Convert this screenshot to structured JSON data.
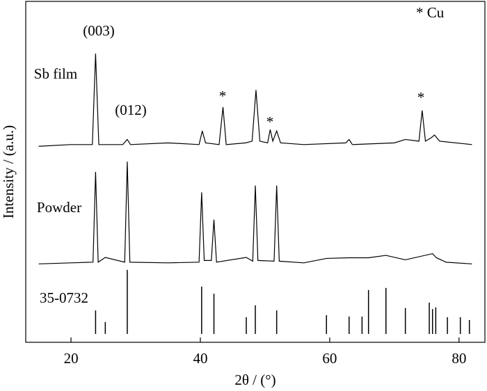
{
  "chart_data": {
    "type": "line",
    "xlabel": "2θ / (°)",
    "ylabel": "Intensity / (a.u.)",
    "xlim": [
      13,
      84
    ],
    "xticks": [
      20,
      40,
      60,
      80
    ],
    "ylim": [
      0,
      100
    ],
    "annotations": [
      "(003)",
      "(012)",
      "*",
      "*",
      "*",
      "* Cu"
    ],
    "series": [
      {
        "name": "Sb film",
        "type": "line",
        "color": "#000000",
        "x": [
          15,
          20,
          23.3,
          23.8,
          24.3,
          28,
          28.7,
          29.2,
          35,
          39.8,
          40.3,
          40.8,
          42.9,
          43.5,
          44,
          47,
          48.0,
          48.6,
          49.2,
          50.4,
          50.8,
          51.2,
          51.8,
          52.4,
          56,
          62.5,
          63,
          63.5,
          70,
          71.7,
          73.8,
          74.3,
          74.8,
          75.7,
          76.2,
          77,
          82
        ],
        "values": [
          57.5,
          58,
          58,
          84.7,
          58,
          58,
          59.5,
          58,
          58.5,
          58,
          62,
          58.5,
          58,
          69,
          58,
          58.5,
          59,
          74,
          59,
          58.5,
          62.4,
          59,
          62,
          58.5,
          58,
          58.5,
          59.5,
          58,
          58.5,
          59.5,
          59,
          68,
          59,
          60,
          60.8,
          59,
          58
        ]
      },
      {
        "name": "Powder",
        "type": "line",
        "color": "#000000",
        "x": [
          15,
          20,
          23.4,
          23.8,
          24.2,
          25.3,
          28.3,
          28.7,
          29.1,
          35,
          39.8,
          40.2,
          40.6,
          41.7,
          42.1,
          42.5,
          47.1,
          48.1,
          48.5,
          48.9,
          51.4,
          51.8,
          52.2,
          56,
          59.5,
          63,
          66,
          68.7,
          71.7,
          75.9,
          76.5,
          78,
          82
        ],
        "values": [
          23,
          23.3,
          23.5,
          50,
          23.5,
          24.9,
          23.5,
          53,
          23.5,
          23.3,
          23.5,
          44,
          24,
          24,
          36,
          23.5,
          24.9,
          23.8,
          46,
          24,
          23.8,
          46,
          23.8,
          23.3,
          24.6,
          24.8,
          24.8,
          25.5,
          24.2,
          26,
          24.8,
          23.5,
          23
        ]
      },
      {
        "name": "35-0732",
        "type": "stem",
        "color": "#000000",
        "x": [
          23.8,
          25.3,
          28.7,
          40.2,
          42.1,
          47.1,
          48.5,
          51.8,
          59.5,
          63,
          65,
          66,
          68.7,
          71.7,
          75.4,
          75.9,
          76.4,
          78.2,
          80.2,
          81.6
        ],
        "values": [
          6.9,
          3.5,
          18.8,
          13.9,
          11.8,
          4.9,
          8.4,
          6.9,
          5.5,
          5.1,
          5.1,
          12.9,
          13.5,
          7.6,
          9.2,
          7.3,
          7.8,
          4.9,
          4.9,
          4.1
        ]
      }
    ]
  }
}
